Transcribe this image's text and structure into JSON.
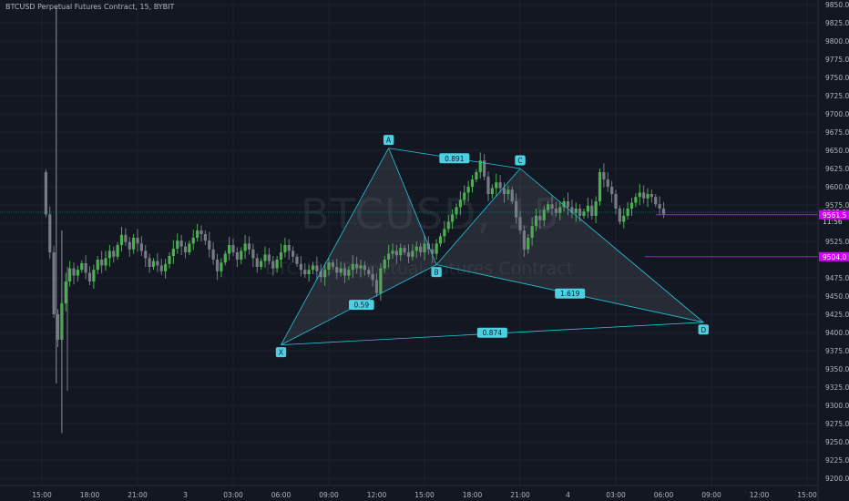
{
  "header": {
    "title": "BTCUSD Perpetual Futures Contract, 15, BYBIT"
  },
  "watermark": {
    "symbol": "BTCUSD, 15",
    "description": "BTCUSD Perpetual Futures Contract"
  },
  "chart_data": {
    "type": "candlestick",
    "y_range": [
      9187.5,
      9862.5
    ],
    "y_ticks": [
      9850,
      9825,
      9800,
      9775,
      9750,
      9725,
      9700,
      9675,
      9650,
      9625,
      9600,
      9575,
      9550,
      9525,
      9475,
      9450,
      9425,
      9400,
      9375,
      9350,
      9325,
      9300,
      9275,
      9250,
      9225,
      9200
    ],
    "y_tick_labels": [
      "9850.0",
      "9825.0",
      "9800.0",
      "9775.0",
      "9750.0",
      "9725.0",
      "9700.0",
      "9675.0",
      "9650.0",
      "9625.0",
      "9600.0",
      "9575.0",
      "9550.0",
      "9525.0",
      "9475.0",
      "9450.0",
      "9425.0",
      "9400.0",
      "9375.0",
      "9350.0",
      "9325.0",
      "9300.0",
      "9275.0",
      "9250.0",
      "9225.0",
      "9200.0"
    ],
    "x_range_hours": [
      -3,
      73
    ],
    "x_ticks": [
      0,
      6,
      12,
      18,
      24,
      30,
      36,
      42,
      48,
      54,
      60,
      66,
      72
    ],
    "x_tick_labels": [
      "15:00",
      "18:00",
      "21:00",
      "3",
      "03:00",
      "06:00",
      "09:00",
      "12:00",
      "15:00",
      "18:00",
      "21:00",
      "4",
      "03:00",
      "06:00",
      "09:00",
      "12:00",
      "15:00"
    ],
    "x_tick_hours": [
      0,
      3,
      6,
      9,
      12,
      15,
      18,
      21,
      24,
      27,
      30,
      33,
      36,
      39,
      42,
      45,
      48
    ],
    "bar_hours": 0.25,
    "first_bar_hour": 0.25,
    "closes": [
      9562,
      9510,
      9425,
      9390,
      9440,
      9470,
      9488,
      9478,
      9486,
      9495,
      9482,
      9470,
      9486,
      9500,
      9492,
      9502,
      9512,
      9504,
      9520,
      9534,
      9524,
      9514,
      9530,
      9522,
      9512,
      9502,
      9490,
      9498,
      9492,
      9484,
      9494,
      9505,
      9515,
      9526,
      9518,
      9510,
      9522,
      9530,
      9540,
      9535,
      9526,
      9514,
      9500,
      9484,
      9496,
      9508,
      9520,
      9510,
      9500,
      9512,
      9522,
      9514,
      9502,
      9490,
      9498,
      9507,
      9498,
      9488,
      9500,
      9510,
      9520,
      9512,
      9504,
      9494,
      9486,
      9480,
      9486,
      9492,
      9484,
      9476,
      9486,
      9496,
      9490,
      9482,
      9488,
      9478,
      9486,
      9494,
      9488,
      9492,
      9486,
      9480,
      9472,
      9454,
      9488,
      9500,
      9508,
      9512,
      9506,
      9516,
      9510,
      9504,
      9512,
      9518,
      9510,
      9522,
      9514,
      9508,
      9522,
      9532,
      9542,
      9552,
      9562,
      9572,
      9582,
      9592,
      9600,
      9610,
      9620,
      9636,
      9614,
      9590,
      9598,
      9606,
      9598,
      9590,
      9596,
      9580,
      9558,
      9540,
      9514,
      9530,
      9546,
      9560,
      9554,
      9568,
      9576,
      9570,
      9564,
      9572,
      9580,
      9572,
      9564,
      9570,
      9560,
      9566,
      9574,
      9560,
      9580,
      9620,
      9610,
      9600,
      9590,
      9570,
      9552,
      9560,
      9570,
      9578,
      9586,
      9592,
      9584,
      9590,
      9586,
      9576,
      9570,
      9562
    ],
    "current_price": 9565.0,
    "current_price_label": "9565.0",
    "countdown_label": "11:56",
    "level_1": 9561.5,
    "level_1_label": "9561.5",
    "level_2": 9504.0,
    "level_2_label": "9504.0",
    "harmonic": {
      "points": [
        {
          "name": "X",
          "label": "X",
          "hour": 15.0,
          "price": 9383
        },
        {
          "name": "A",
          "label": "A",
          "hour": 21.75,
          "price": 9653
        },
        {
          "name": "B",
          "label": "B",
          "hour": 24.75,
          "price": 9493
        },
        {
          "name": "C",
          "label": "C",
          "hour": 30.0,
          "price": 9625
        },
        {
          "name": "D",
          "label": "D",
          "hour": 41.5,
          "price": 9414
        }
      ],
      "ratios": [
        {
          "name": "xb",
          "label": "0.59"
        },
        {
          "name": "ac",
          "label": "0.891"
        },
        {
          "name": "bd",
          "label": "1.619"
        },
        {
          "name": "xd",
          "label": "0.874"
        }
      ]
    },
    "colors": {
      "background": "#131722",
      "up": "#26a69a",
      "candle_up": "#4caf50",
      "candle_down": "#787b86",
      "pattern": "#26c6da",
      "label_bg": "#4dd0e1",
      "level": "#9c27b0",
      "level_label": "#d500f9",
      "grid": "#1e222d",
      "text": "#b2b5be"
    }
  }
}
